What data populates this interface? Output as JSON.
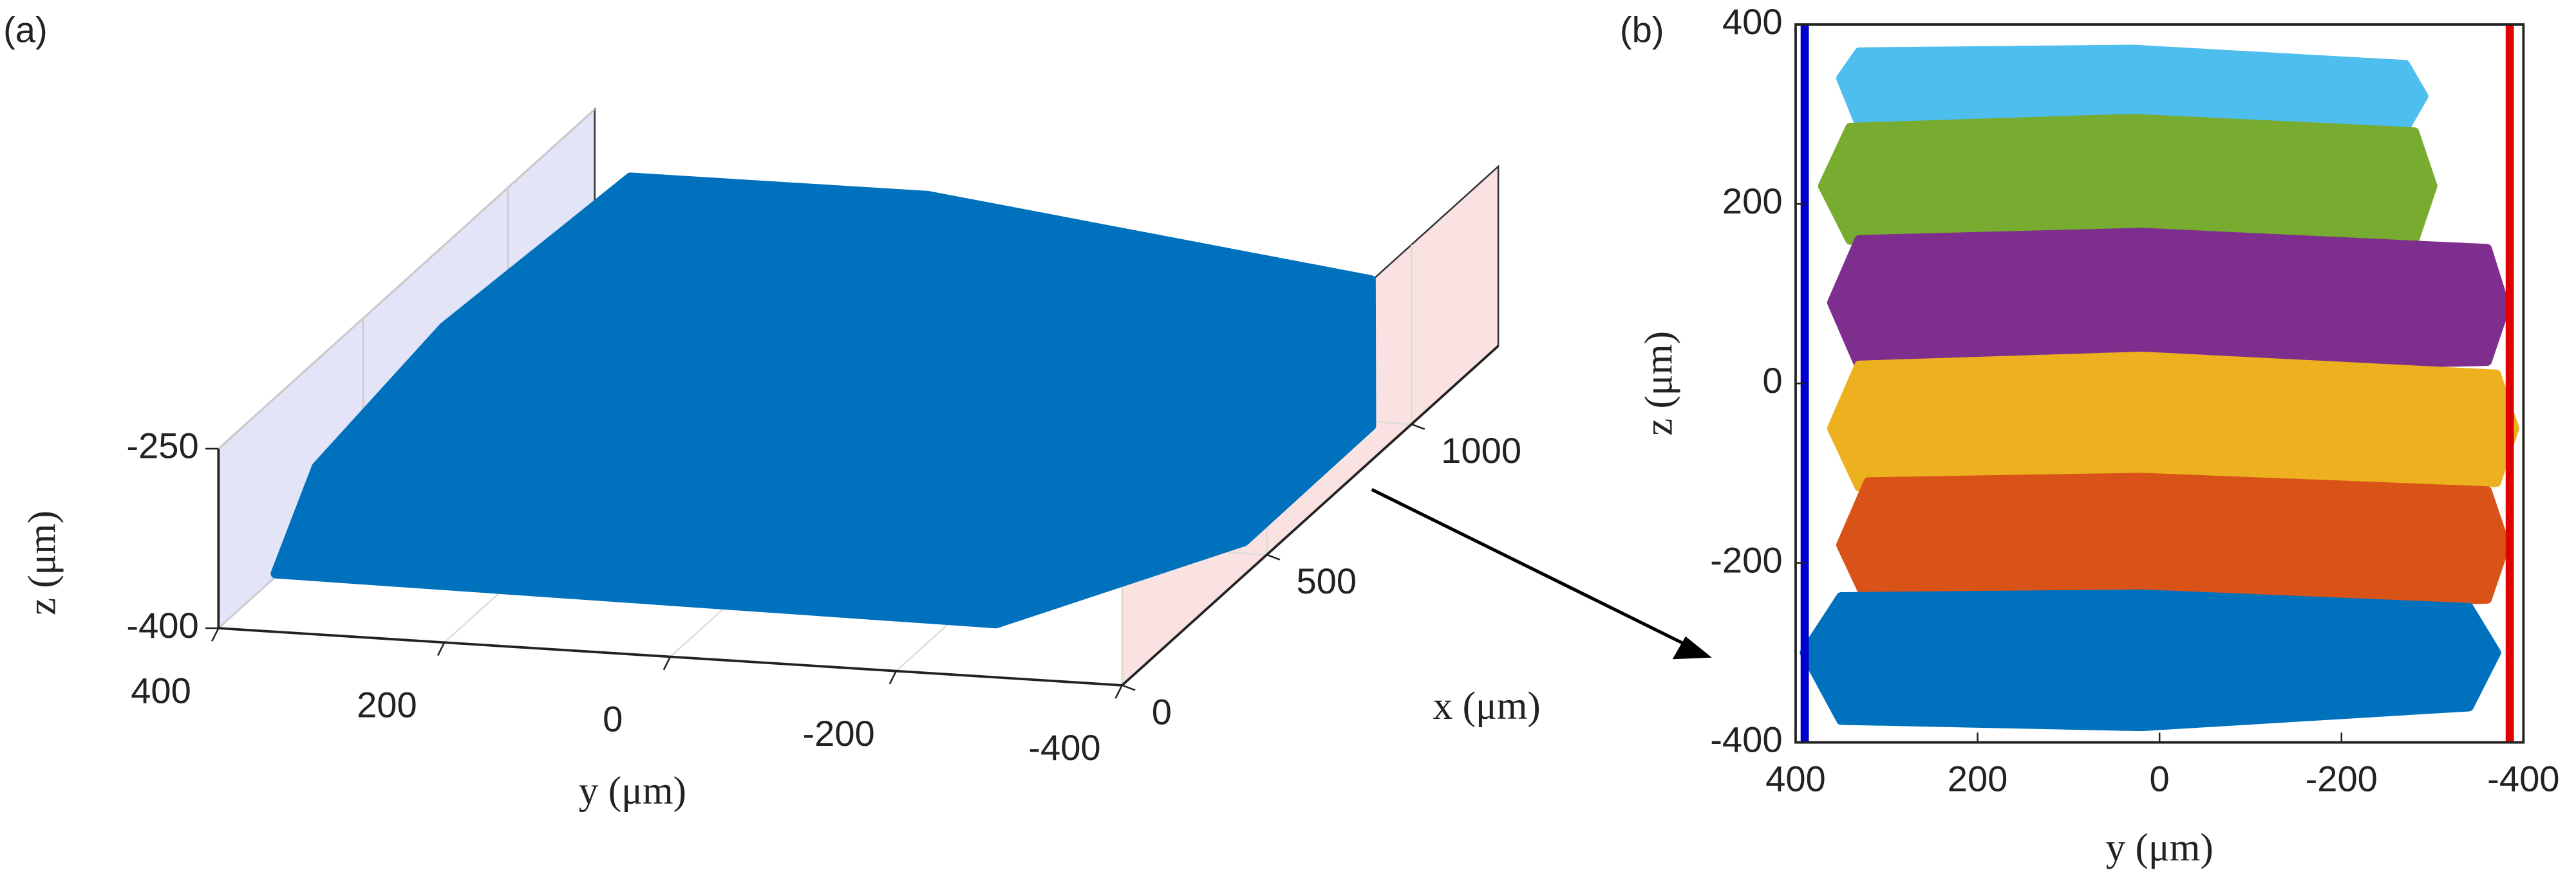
{
  "chart_data": [
    {
      "type": "scatter3d",
      "panel_label": "(a)",
      "xlabel": "x (μm)",
      "ylabel": "y (μm)",
      "zlabel": "z (μm)",
      "xlim": [
        0,
        1300
      ],
      "ylim": [
        400,
        -400
      ],
      "zlim": [
        -400,
        -250
      ],
      "xticks": [
        0,
        500,
        1000
      ],
      "yticks": [
        400,
        200,
        0,
        -200,
        -400
      ],
      "zticks": [
        -400,
        -250
      ],
      "grid": true,
      "series": [
        {
          "color": "#0072bd",
          "x": [
            80,
            300,
            700,
            1150,
            1280,
            1250,
            900,
            500,
            150
          ],
          "y": [
            370,
            390,
            380,
            330,
            100,
            -300,
            -390,
            -380,
            -250
          ],
          "z": [
            -370,
            -330,
            -300,
            -270,
            -300,
            -340,
            -380,
            -390,
            -390
          ]
        }
      ]
    },
    {
      "type": "scatter",
      "panel_label": "(b)",
      "xlabel": "y (μm)",
      "ylabel": "z (μm)",
      "xlim": [
        400,
        -400
      ],
      "ylim": [
        -400,
        400
      ],
      "xticks": [
        400,
        200,
        0,
        -200,
        -400
      ],
      "yticks": [
        -400,
        -200,
        0,
        200,
        400
      ],
      "reference_lines": [
        {
          "x": 390,
          "color": "#0000cc"
        },
        {
          "x": -385,
          "color": "#e00000"
        }
      ],
      "series": [
        {
          "color": "#4dbeee",
          "x": [
            350,
            330,
            30,
            -270,
            -290,
            -270,
            30,
            330
          ],
          "y": [
            340,
            369,
            372,
            355,
            320,
            285,
            282,
            290
          ]
        },
        {
          "color": "#77ac30",
          "x": [
            370,
            340,
            30,
            -280,
            -300,
            -280,
            30,
            340
          ],
          "y": [
            220,
            285,
            295,
            280,
            220,
            160,
            152,
            160
          ]
        },
        {
          "color": "#7e2f8e",
          "x": [
            360,
            330,
            20,
            -360,
            -380,
            -360,
            20,
            330
          ],
          "y": [
            90,
            160,
            168,
            150,
            85,
            25,
            16,
            20
          ]
        },
        {
          "color": "#edb120",
          "x": [
            360,
            330,
            20,
            -370,
            -390,
            -370,
            20,
            330
          ],
          "y": [
            -50,
            20,
            30,
            10,
            -50,
            -110,
            -120,
            -115
          ]
        },
        {
          "color": "#d95319",
          "x": [
            350,
            320,
            20,
            -360,
            -380,
            -360,
            20,
            320
          ],
          "y": [
            -180,
            -110,
            -105,
            -120,
            -180,
            -240,
            -250,
            -245
          ]
        },
        {
          "color": "#0072bd",
          "x": [
            390,
            350,
            20,
            -340,
            -370,
            -340,
            20,
            350
          ],
          "y": [
            -300,
            -238,
            -235,
            -250,
            -300,
            -360,
            -382,
            -375
          ]
        }
      ]
    }
  ]
}
